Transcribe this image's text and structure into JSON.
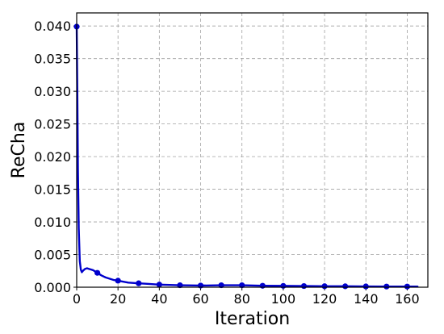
{
  "chart_data": {
    "type": "line",
    "title": "",
    "xlabel": "Iteration",
    "ylabel": "ReCha",
    "xlim": [
      0,
      170
    ],
    "ylim": [
      0,
      0.042
    ],
    "grid": true,
    "x_ticks": [
      0,
      20,
      40,
      60,
      80,
      100,
      120,
      140,
      160
    ],
    "x_tick_labels": [
      "0",
      "20",
      "40",
      "60",
      "80",
      "100",
      "120",
      "140",
      "160"
    ],
    "y_ticks": [
      0,
      0.005,
      0.01,
      0.015,
      0.02,
      0.025,
      0.03,
      0.035,
      0.04
    ],
    "y_tick_labels": [
      "0.000",
      "0.005",
      "0.010",
      "0.015",
      "0.020",
      "0.025",
      "0.030",
      "0.035",
      "0.040"
    ],
    "series": [
      {
        "color": "#0000cc",
        "line": {
          "x": [
            0,
            0.3,
            0.6,
            1,
            1.5,
            2,
            2.5,
            3,
            4,
            5,
            6,
            7,
            8,
            9,
            10,
            12,
            14,
            16,
            18,
            20,
            25,
            30,
            35,
            40,
            50,
            60,
            70,
            80,
            90,
            100,
            110,
            120,
            130,
            140,
            150,
            160,
            165
          ],
          "y": [
            0.0399,
            0.03,
            0.018,
            0.009,
            0.004,
            0.0027,
            0.0023,
            0.0025,
            0.0028,
            0.0029,
            0.0028,
            0.0027,
            0.0026,
            0.0024,
            0.0022,
            0.0018,
            0.0015,
            0.0013,
            0.0011,
            0.001,
            0.0007,
            0.0006,
            0.0005,
            0.0004,
            0.0003,
            0.00025,
            0.0003,
            0.0003,
            0.00022,
            0.0002,
            0.00018,
            0.00015,
            0.00014,
            0.00012,
            0.0001,
            0.0001,
            0.0001
          ]
        },
        "markers": {
          "x": [
            0,
            10,
            20,
            30,
            40,
            50,
            60,
            70,
            80,
            90,
            100,
            110,
            120,
            130,
            140,
            150,
            160
          ],
          "y": [
            0.0399,
            0.0022,
            0.001,
            0.0006,
            0.0004,
            0.0003,
            0.00025,
            0.0003,
            0.0003,
            0.00022,
            0.0002,
            0.00018,
            0.00015,
            0.00014,
            0.00012,
            0.0001,
            0.0001
          ]
        }
      }
    ]
  }
}
